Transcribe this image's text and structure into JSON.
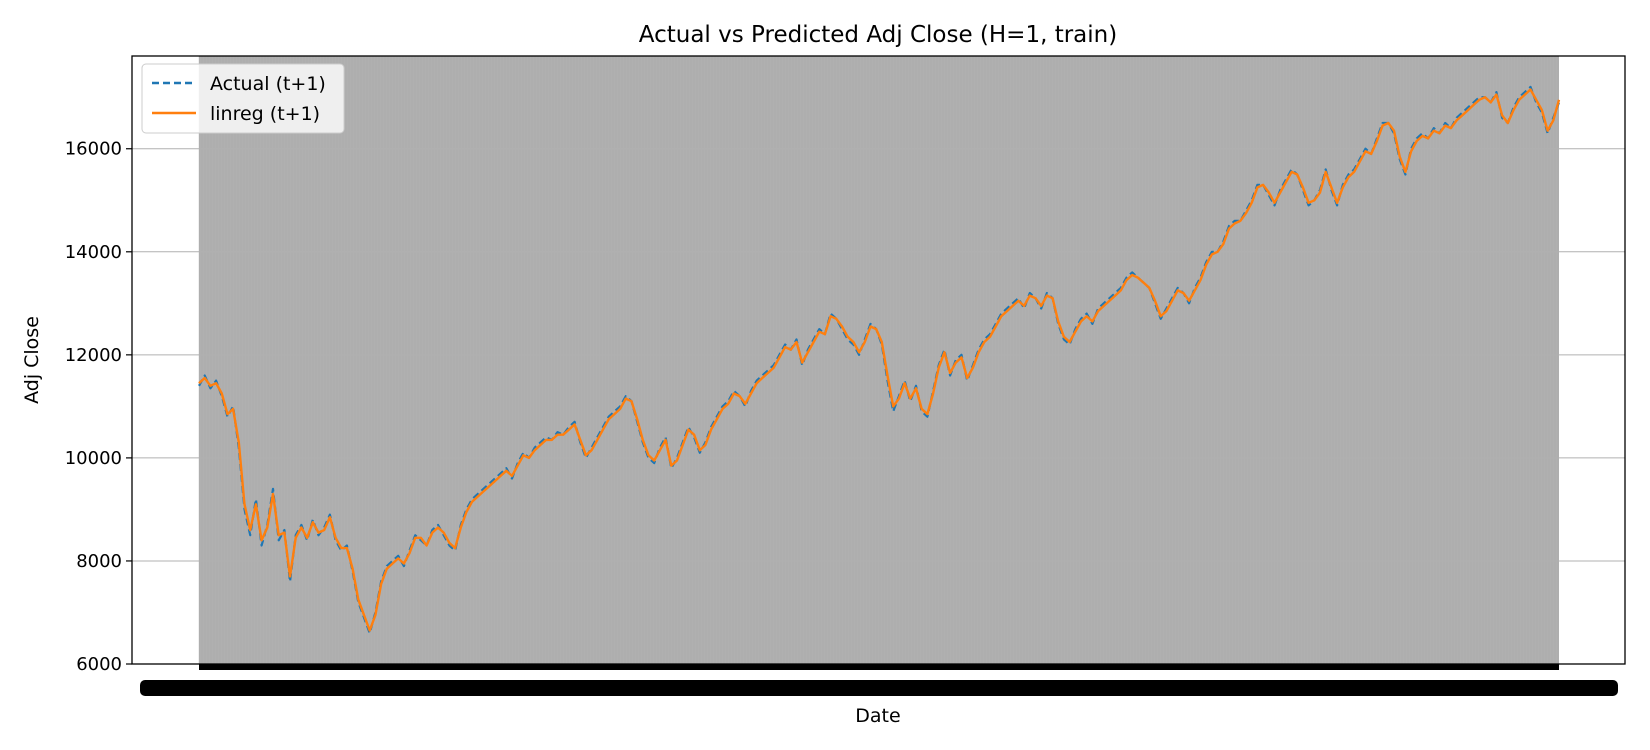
{
  "chart_data": {
    "type": "line",
    "title": "Actual vs Predicted Adj Close (H=1, train)",
    "xlabel": "Date",
    "ylabel": "Adj Close",
    "ylim": [
      6000,
      17800
    ],
    "yticks": [
      6000,
      8000,
      10000,
      12000,
      14000,
      16000
    ],
    "grid": "y",
    "legend": "top-left",
    "x_tick_labels_overlapping": true,
    "colors": {
      "actual": "#1f77b4",
      "linreg": "#ff7f0e",
      "band": "#b0b0b0",
      "grid": "#b0b0b0"
    },
    "series": [
      {
        "name": "Actual (t+1)",
        "style": "dashed",
        "values": [
          11400,
          11600,
          11350,
          11500,
          11200,
          10800,
          11000,
          10200,
          9000,
          8500,
          9200,
          8300,
          8700,
          9400,
          8400,
          8600,
          7600,
          8500,
          8700,
          8400,
          8800,
          8500,
          8650,
          8900,
          8400,
          8200,
          8300,
          7800,
          7200,
          6900,
          6600,
          7000,
          7600,
          7900,
          8000,
          8100,
          7900,
          8200,
          8500,
          8400,
          8300,
          8600,
          8700,
          8500,
          8300,
          8200,
          8700,
          9000,
          9200,
          9300,
          9400,
          9500,
          9600,
          9700,
          9800,
          9600,
          9900,
          10100,
          10000,
          10200,
          10300,
          10400,
          10350,
          10500,
          10450,
          10600,
          10700,
          10300,
          10000,
          10200,
          10400,
          10600,
          10800,
          10900,
          11000,
          11200,
          11100,
          10700,
          10300,
          10000,
          9900,
          10200,
          10400,
          9800,
          10000,
          10300,
          10600,
          10400,
          10100,
          10300,
          10600,
          10800,
          11000,
          11100,
          11300,
          11200,
          11000,
          11300,
          11500,
          11600,
          11700,
          11800,
          12000,
          12200,
          12100,
          12300,
          11800,
          12100,
          12300,
          12500,
          12400,
          12800,
          12700,
          12500,
          12300,
          12200,
          12000,
          12300,
          12600,
          12500,
          12200,
          11500,
          10900,
          11200,
          11500,
          11100,
          11400,
          10900,
          10800,
          11300,
          11800,
          12100,
          11600,
          11900,
          12000,
          11500,
          11800,
          12100,
          12300,
          12400,
          12600,
          12800,
          12900,
          13000,
          13100,
          12900,
          13200,
          13100,
          12900,
          13200,
          13100,
          12600,
          12300,
          12200,
          12500,
          12700,
          12800,
          12600,
          12900,
          13000,
          13100,
          13200,
          13300,
          13500,
          13600,
          13500,
          13400,
          13300,
          13000,
          12700,
          12900,
          13100,
          13300,
          13200,
          13000,
          13300,
          13500,
          13800,
          14000,
          14000,
          14200,
          14500,
          14600,
          14600,
          14800,
          15000,
          15300,
          15300,
          15100,
          14900,
          15200,
          15400,
          15600,
          15500,
          15200,
          14900,
          15000,
          15200,
          15600,
          15200,
          14900,
          15300,
          15500,
          15600,
          15800,
          16000,
          15900,
          16200,
          16500,
          16500,
          16300,
          15800,
          15500,
          16000,
          16200,
          16300,
          16200,
          16400,
          16300,
          16500,
          16400,
          16600,
          16700,
          16800,
          16900,
          17000,
          17000,
          16900,
          17100,
          16600,
          16500,
          16800,
          17000,
          17100,
          17200,
          16900,
          16700,
          16300,
          16600,
          16900
        ]
      },
      {
        "name": "linreg (t+1)",
        "style": "solid",
        "values": [
          11450,
          11550,
          11400,
          11450,
          11250,
          10850,
          10950,
          10300,
          9100,
          8600,
          9100,
          8400,
          8650,
          9300,
          8500,
          8550,
          7700,
          8450,
          8650,
          8450,
          8750,
          8550,
          8600,
          8850,
          8450,
          8250,
          8250,
          7850,
          7250,
          6950,
          6650,
          6950,
          7550,
          7850,
          7950,
          8050,
          7950,
          8150,
          8450,
          8450,
          8300,
          8550,
          8650,
          8550,
          8350,
          8250,
          8650,
          8950,
          9150,
          9250,
          9350,
          9450,
          9550,
          9650,
          9750,
          9650,
          9850,
          10050,
          10000,
          10150,
          10250,
          10350,
          10350,
          10450,
          10450,
          10550,
          10650,
          10350,
          10050,
          10150,
          10350,
          10550,
          10750,
          10850,
          10950,
          11150,
          11100,
          10750,
          10350,
          10050,
          9950,
          10150,
          10350,
          9850,
          9950,
          10250,
          10550,
          10450,
          10150,
          10250,
          10550,
          10750,
          10950,
          11050,
          11250,
          11200,
          11050,
          11250,
          11450,
          11550,
          11650,
          11750,
          11950,
          12150,
          12100,
          12250,
          11850,
          12050,
          12250,
          12450,
          12400,
          12750,
          12700,
          12550,
          12350,
          12250,
          12050,
          12250,
          12550,
          12500,
          12250,
          11600,
          11000,
          11150,
          11450,
          11150,
          11350,
          10950,
          10850,
          11250,
          11750,
          12050,
          11650,
          11850,
          11950,
          11550,
          11750,
          12050,
          12250,
          12350,
          12550,
          12750,
          12850,
          12950,
          13050,
          12950,
          13150,
          13100,
          12950,
          13150,
          13100,
          12650,
          12350,
          12250,
          12450,
          12650,
          12750,
          12650,
          12850,
          12950,
          13050,
          13150,
          13250,
          13450,
          13550,
          13500,
          13400,
          13300,
          13050,
          12750,
          12850,
          13050,
          13250,
          13200,
          13050,
          13250,
          13450,
          13750,
          13950,
          14000,
          14150,
          14450,
          14550,
          14600,
          14750,
          14950,
          15250,
          15300,
          15150,
          14950,
          15150,
          15350,
          15550,
          15500,
          15250,
          14950,
          15000,
          15150,
          15550,
          15250,
          14950,
          15250,
          15450,
          15550,
          15750,
          15950,
          15900,
          16150,
          16450,
          16500,
          16350,
          15850,
          15550,
          15950,
          16150,
          16250,
          16200,
          16350,
          16300,
          16450,
          16400,
          16550,
          16650,
          16750,
          16850,
          16950,
          17000,
          16900,
          17050,
          16650,
          16500,
          16750,
          16950,
          17050,
          17150,
          16950,
          16750,
          16350,
          16550,
          16950
        ]
      }
    ]
  }
}
